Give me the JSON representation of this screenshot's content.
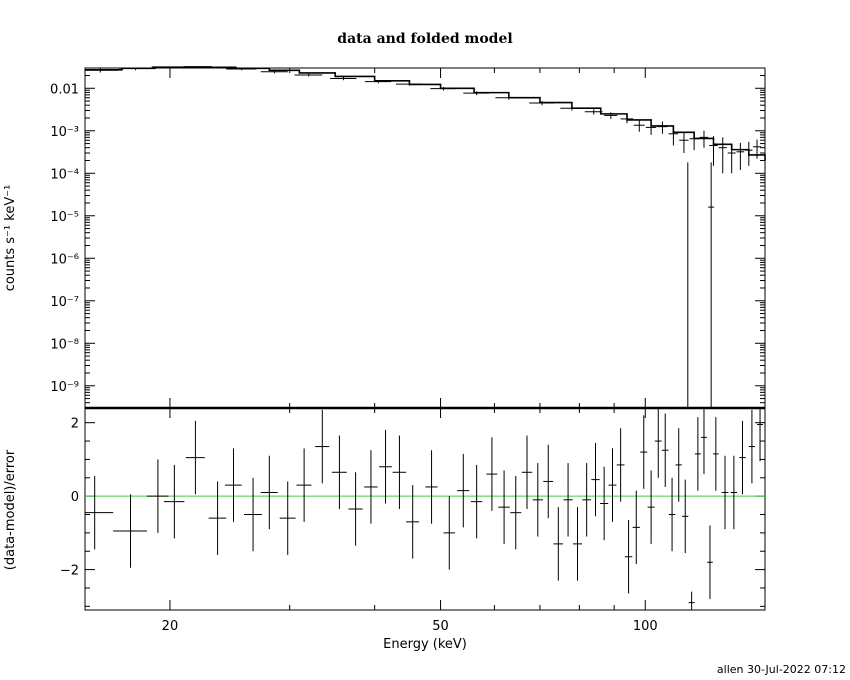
{
  "chart_data": [
    {
      "type": "scatter",
      "title": "data and folded model",
      "xlabel": "",
      "ylabel": "counts s⁻¹ keV⁻¹",
      "xscale": "log",
      "yscale": "log",
      "xlim": [
        15,
        150
      ],
      "ylim": [
        3e-10,
        0.03
      ],
      "y_ticks": [
        "0.01",
        "10⁻³",
        "10⁻⁴",
        "10⁻⁵",
        "10⁻⁶",
        "10⁻⁷",
        "10⁻⁸",
        "10⁻⁹"
      ],
      "y_tick_values": [
        0.01,
        0.001,
        0.0001,
        1e-05,
        1e-06,
        1e-07,
        1e-08,
        1e-09
      ],
      "series": [
        {
          "kind": "data",
          "points": [
            {
              "x": 15.8,
              "y": 0.0265,
              "xerr": 1.0,
              "yerr": 0.003
            },
            {
              "x": 17.8,
              "y": 0.0295,
              "xerr": 1.0,
              "yerr": 0.003
            },
            {
              "x": 20.0,
              "y": 0.0318,
              "xerr": 1.2,
              "yerr": 0.002
            },
            {
              "x": 22.5,
              "y": 0.0312,
              "xerr": 1.2,
              "yerr": 0.002
            },
            {
              "x": 25.5,
              "y": 0.0285,
              "xerr": 1.3,
              "yerr": 0.002
            },
            {
              "x": 28.5,
              "y": 0.0245,
              "xerr": 1.3,
              "yerr": 0.002
            },
            {
              "x": 32.0,
              "y": 0.0205,
              "xerr": 1.5,
              "yerr": 0.0015
            },
            {
              "x": 36.0,
              "y": 0.017,
              "xerr": 1.6,
              "yerr": 0.0015
            },
            {
              "x": 40.5,
              "y": 0.0143,
              "xerr": 1.8,
              "yerr": 0.0012
            },
            {
              "x": 45.0,
              "y": 0.0125,
              "xerr": 2.0,
              "yerr": 0.001
            },
            {
              "x": 50.5,
              "y": 0.0098,
              "xerr": 2.2,
              "yerr": 0.0009
            },
            {
              "x": 56.5,
              "y": 0.0077,
              "xerr": 2.5,
              "yerr": 0.0008
            },
            {
              "x": 63.0,
              "y": 0.006,
              "xerr": 2.8,
              "yerr": 0.0006
            },
            {
              "x": 70.5,
              "y": 0.0045,
              "xerr": 3.0,
              "yerr": 0.0005
            },
            {
              "x": 78.0,
              "y": 0.0034,
              "xerr": 3.0,
              "yerr": 0.0004
            },
            {
              "x": 84.0,
              "y": 0.0028,
              "xerr": 2.5,
              "yerr": 0.0004
            },
            {
              "x": 89.0,
              "y": 0.0023,
              "xerr": 2.0,
              "yerr": 0.0004
            },
            {
              "x": 94.0,
              "y": 0.0019,
              "xerr": 2.0,
              "yerr": 0.0004
            },
            {
              "x": 98.0,
              "y": 0.00135,
              "xerr": 1.8,
              "yerr": 0.0004
            },
            {
              "x": 102.0,
              "y": 0.0012,
              "xerr": 1.8,
              "yerr": 0.0004
            },
            {
              "x": 106.0,
              "y": 0.00125,
              "xerr": 1.8,
              "yerr": 0.0004
            },
            {
              "x": 110.0,
              "y": 0.00085,
              "xerr": 1.8,
              "yerr": 0.0004
            },
            {
              "x": 114.0,
              "y": 0.0006,
              "xerr": 1.8,
              "yerr": 0.0003
            },
            {
              "x": 118.0,
              "y": 0.00065,
              "xerr": 1.8,
              "yerr": 0.0003
            },
            {
              "x": 122.0,
              "y": 0.0007,
              "xerr": 1.8,
              "yerr": 0.0003
            },
            {
              "x": 126.0,
              "y": 0.00045,
              "xerr": 1.8,
              "yerr": 0.0003
            },
            {
              "x": 130.0,
              "y": 0.0004,
              "xerr": 1.8,
              "yerr": 0.0003
            },
            {
              "x": 134.0,
              "y": 0.0003,
              "xerr": 1.8,
              "yerr": 0.0002
            },
            {
              "x": 138.0,
              "y": 0.00032,
              "xerr": 1.8,
              "yerr": 0.0002
            },
            {
              "x": 142.0,
              "y": 0.00035,
              "xerr": 1.8,
              "yerr": 0.0002
            },
            {
              "x": 146.0,
              "y": 0.00042,
              "xerr": 2.0,
              "yerr": 0.0002
            }
          ],
          "special": [
            {
              "x": 115.5,
              "y_top": 0.00018,
              "y_bottom": 3e-10
            },
            {
              "x": 125.0,
              "y_top": 0.00018,
              "y_bottom": 3e-10,
              "y_center": 1.6e-05
            }
          ]
        },
        {
          "kind": "model",
          "points": [
            [
              15,
              0.0272
            ],
            [
              17,
              0.0295
            ],
            [
              19,
              0.031
            ],
            [
              21,
              0.0318
            ],
            [
              23,
              0.0312
            ],
            [
              25,
              0.0295
            ],
            [
              28,
              0.0265
            ],
            [
              31,
              0.023
            ],
            [
              35,
              0.019
            ],
            [
              40,
              0.015
            ],
            [
              45,
              0.0123
            ],
            [
              50,
              0.01
            ],
            [
              56,
              0.0079
            ],
            [
              63,
              0.006
            ],
            [
              70,
              0.0046
            ],
            [
              78,
              0.0034
            ],
            [
              86,
              0.0025
            ],
            [
              94,
              0.0018
            ],
            [
              102,
              0.0013
            ],
            [
              110,
              0.00092
            ],
            [
              118,
              0.00066
            ],
            [
              126,
              0.00048
            ],
            [
              134,
              0.00036
            ],
            [
              142,
              0.00027
            ],
            [
              150,
              0.0002
            ]
          ]
        }
      ]
    },
    {
      "type": "scatter",
      "title": "",
      "xlabel": "Energy (keV)",
      "ylabel": "(data-model)/error",
      "xscale": "log",
      "xlim": [
        15,
        150
      ],
      "ylim": [
        -3.1,
        2.4
      ],
      "x_ticks": [
        "20",
        "50",
        "100"
      ],
      "x_tick_values": [
        20,
        50,
        100
      ],
      "y_ticks": [
        "2",
        "0",
        "−2"
      ],
      "y_tick_values": [
        2,
        0,
        -2
      ],
      "reference_line": {
        "y": 0,
        "color": "#44cc44"
      },
      "points": [
        {
          "x": 15.5,
          "y": -0.45,
          "xerr": 1.0,
          "yerr": 1.0
        },
        {
          "x": 17.5,
          "y": -0.95,
          "xerr": 1.0,
          "yerr": 1.0
        },
        {
          "x": 19.2,
          "y": 0.0,
          "xerr": 0.7,
          "yerr": 1.0
        },
        {
          "x": 20.3,
          "y": -0.15,
          "xerr": 0.7,
          "yerr": 1.0
        },
        {
          "x": 21.8,
          "y": 1.05,
          "xerr": 0.7,
          "yerr": 1.0
        },
        {
          "x": 23.5,
          "y": -0.6,
          "xerr": 0.7,
          "yerr": 1.0
        },
        {
          "x": 24.8,
          "y": 0.3,
          "xerr": 0.7,
          "yerr": 1.0
        },
        {
          "x": 26.5,
          "y": -0.5,
          "xerr": 0.8,
          "yerr": 1.0
        },
        {
          "x": 28.0,
          "y": 0.1,
          "xerr": 0.8,
          "yerr": 1.0
        },
        {
          "x": 29.8,
          "y": -0.6,
          "xerr": 0.8,
          "yerr": 1.0
        },
        {
          "x": 31.5,
          "y": 0.3,
          "xerr": 0.8,
          "yerr": 1.0
        },
        {
          "x": 33.5,
          "y": 1.35,
          "xerr": 0.8,
          "yerr": 1.0
        },
        {
          "x": 35.5,
          "y": 0.65,
          "xerr": 0.9,
          "yerr": 1.0
        },
        {
          "x": 37.5,
          "y": -0.35,
          "xerr": 0.9,
          "yerr": 1.0
        },
        {
          "x": 39.5,
          "y": 0.25,
          "xerr": 0.9,
          "yerr": 1.0
        },
        {
          "x": 41.5,
          "y": 0.8,
          "xerr": 0.9,
          "yerr": 1.0
        },
        {
          "x": 43.5,
          "y": 0.65,
          "xerr": 1.0,
          "yerr": 1.0
        },
        {
          "x": 45.5,
          "y": -0.7,
          "xerr": 1.0,
          "yerr": 1.0
        },
        {
          "x": 48.5,
          "y": 0.25,
          "xerr": 1.0,
          "yerr": 1.0
        },
        {
          "x": 51.5,
          "y": -1.0,
          "xerr": 1.0,
          "yerr": 1.0
        },
        {
          "x": 54.0,
          "y": 0.15,
          "xerr": 1.1,
          "yerr": 1.0
        },
        {
          "x": 56.5,
          "y": -0.15,
          "xerr": 1.1,
          "yerr": 1.0
        },
        {
          "x": 59.5,
          "y": 0.6,
          "xerr": 1.1,
          "yerr": 1.0
        },
        {
          "x": 62.0,
          "y": -0.3,
          "xerr": 1.2,
          "yerr": 1.0
        },
        {
          "x": 64.5,
          "y": -0.45,
          "xerr": 1.2,
          "yerr": 1.0
        },
        {
          "x": 67.0,
          "y": 0.65,
          "xerr": 1.2,
          "yerr": 1.0
        },
        {
          "x": 69.5,
          "y": -0.1,
          "xerr": 1.2,
          "yerr": 1.0
        },
        {
          "x": 72.0,
          "y": 0.4,
          "xerr": 1.2,
          "yerr": 1.0
        },
        {
          "x": 74.5,
          "y": -1.3,
          "xerr": 1.2,
          "yerr": 1.0
        },
        {
          "x": 77.0,
          "y": -0.1,
          "xerr": 1.2,
          "yerr": 1.0
        },
        {
          "x": 79.5,
          "y": -1.3,
          "xerr": 1.2,
          "yerr": 1.0
        },
        {
          "x": 82.0,
          "y": -0.1,
          "xerr": 1.2,
          "yerr": 1.0
        },
        {
          "x": 84.5,
          "y": 0.45,
          "xerr": 1.2,
          "yerr": 1.0
        },
        {
          "x": 87.0,
          "y": -0.2,
          "xerr": 1.2,
          "yerr": 1.0
        },
        {
          "x": 89.5,
          "y": 0.3,
          "xerr": 1.2,
          "yerr": 1.0
        },
        {
          "x": 92.0,
          "y": 0.85,
          "xerr": 1.2,
          "yerr": 1.0
        },
        {
          "x": 94.5,
          "y": -1.65,
          "xerr": 1.2,
          "yerr": 1.0
        },
        {
          "x": 97.0,
          "y": -0.85,
          "xerr": 1.2,
          "yerr": 1.0
        },
        {
          "x": 99.5,
          "y": 1.2,
          "xerr": 1.2,
          "yerr": 1.0
        },
        {
          "x": 102.0,
          "y": -0.3,
          "xerr": 1.2,
          "yerr": 1.0
        },
        {
          "x": 104.5,
          "y": 1.5,
          "xerr": 1.2,
          "yerr": 1.0
        },
        {
          "x": 107.0,
          "y": 1.25,
          "xerr": 1.2,
          "yerr": 1.0
        },
        {
          "x": 109.5,
          "y": -0.5,
          "xerr": 1.2,
          "yerr": 1.0
        },
        {
          "x": 112.0,
          "y": 0.85,
          "xerr": 1.2,
          "yerr": 1.0
        },
        {
          "x": 114.5,
          "y": -0.55,
          "xerr": 1.2,
          "yerr": 1.0
        },
        {
          "x": 117.0,
          "y": -2.9,
          "xerr": 1.2,
          "yerr": 0.3
        },
        {
          "x": 119.5,
          "y": 1.15,
          "xerr": 1.2,
          "yerr": 1.0
        },
        {
          "x": 122.0,
          "y": 1.6,
          "xerr": 1.2,
          "yerr": 1.0
        },
        {
          "x": 124.5,
          "y": -1.8,
          "xerr": 1.2,
          "yerr": 1.0
        },
        {
          "x": 127.0,
          "y": 1.15,
          "xerr": 1.2,
          "yerr": 1.0
        },
        {
          "x": 131.0,
          "y": 0.1,
          "xerr": 1.5,
          "yerr": 1.0
        },
        {
          "x": 135.0,
          "y": 0.1,
          "xerr": 1.5,
          "yerr": 1.0
        },
        {
          "x": 139.0,
          "y": 1.05,
          "xerr": 1.5,
          "yerr": 1.0
        },
        {
          "x": 143.5,
          "y": 1.35,
          "xerr": 1.5,
          "yerr": 1.0
        },
        {
          "x": 147.5,
          "y": 1.95,
          "xerr": 1.5,
          "yerr": 1.0
        }
      ]
    }
  ],
  "footer": "allen 30-Jul-2022 07:12"
}
